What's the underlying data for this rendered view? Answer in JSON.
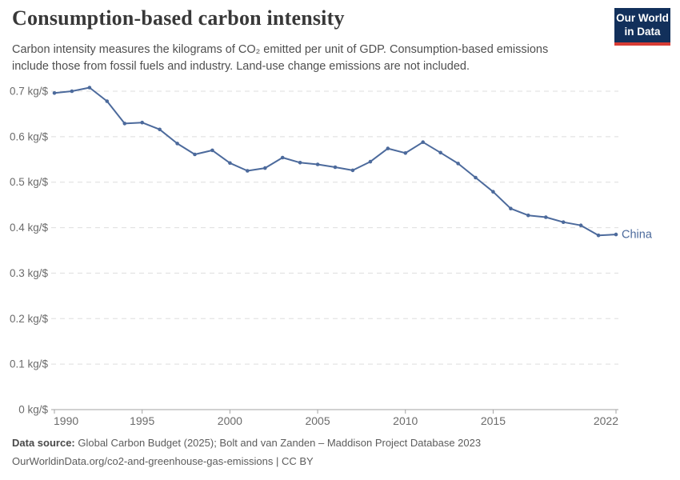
{
  "header": {
    "title": "Consumption-based carbon intensity",
    "subtitle": "Carbon intensity measures the kilograms of CO₂ emitted per unit of GDP. Consumption-based emissions include those from fossil fuels and industry. Land-use change emissions are not included.",
    "logo": {
      "line1": "Our World",
      "line2": "in Data",
      "bg_color": "#12305b",
      "accent_color": "#d73c34"
    }
  },
  "chart_data": {
    "type": "line",
    "title": "Consumption-based carbon intensity",
    "xlabel": "",
    "ylabel": "",
    "unit": "kg/$",
    "xlim": [
      1990,
      2022
    ],
    "ylim": [
      0,
      0.7
    ],
    "grid": "horizontal-dashed",
    "legend_position": "end-of-line-label",
    "x": [
      1990,
      1991,
      1992,
      1993,
      1994,
      1995,
      1996,
      1997,
      1998,
      1999,
      2000,
      2001,
      2002,
      2003,
      2004,
      2005,
      2006,
      2007,
      2008,
      2009,
      2010,
      2011,
      2012,
      2013,
      2014,
      2015,
      2016,
      2017,
      2018,
      2019,
      2020,
      2021,
      2022
    ],
    "series": [
      {
        "name": "China",
        "color": "#4C6A9C",
        "values": [
          0.696,
          0.7,
          0.708,
          0.678,
          0.629,
          0.631,
          0.616,
          0.585,
          0.561,
          0.57,
          0.542,
          0.525,
          0.531,
          0.554,
          0.543,
          0.539,
          0.533,
          0.526,
          0.545,
          0.574,
          0.564,
          0.588,
          0.565,
          0.541,
          0.51,
          0.479,
          0.442,
          0.427,
          0.423,
          0.412,
          0.405,
          0.383,
          0.385
        ]
      }
    ],
    "y_ticks": [
      {
        "value": 0,
        "label": "0 kg/$"
      },
      {
        "value": 0.1,
        "label": "0.1 kg/$"
      },
      {
        "value": 0.2,
        "label": "0.2 kg/$"
      },
      {
        "value": 0.3,
        "label": "0.3 kg/$"
      },
      {
        "value": 0.4,
        "label": "0.4 kg/$"
      },
      {
        "value": 0.5,
        "label": "0.5 kg/$"
      },
      {
        "value": 0.6,
        "label": "0.6 kg/$"
      },
      {
        "value": 0.7,
        "label": "0.7 kg/$"
      }
    ],
    "x_ticks": [
      {
        "value": 1990,
        "label": "1990"
      },
      {
        "value": 1995,
        "label": "1995"
      },
      {
        "value": 2000,
        "label": "2000"
      },
      {
        "value": 2005,
        "label": "2005"
      },
      {
        "value": 2010,
        "label": "2010"
      },
      {
        "value": 2015,
        "label": "2015"
      },
      {
        "value": 2022,
        "label": "2022"
      }
    ]
  },
  "colors": {
    "grid": "#dedede",
    "axis": "#a3a3a3",
    "axis_text": "#6b6b6b"
  },
  "footer": {
    "datasource_label": "Data source:",
    "datasource_text": " Global Carbon Budget (2025); Bolt and van Zanden – Maddison Project Database 2023",
    "attribution": "OurWorldinData.org/co2-and-greenhouse-gas-emissions | CC BY"
  }
}
